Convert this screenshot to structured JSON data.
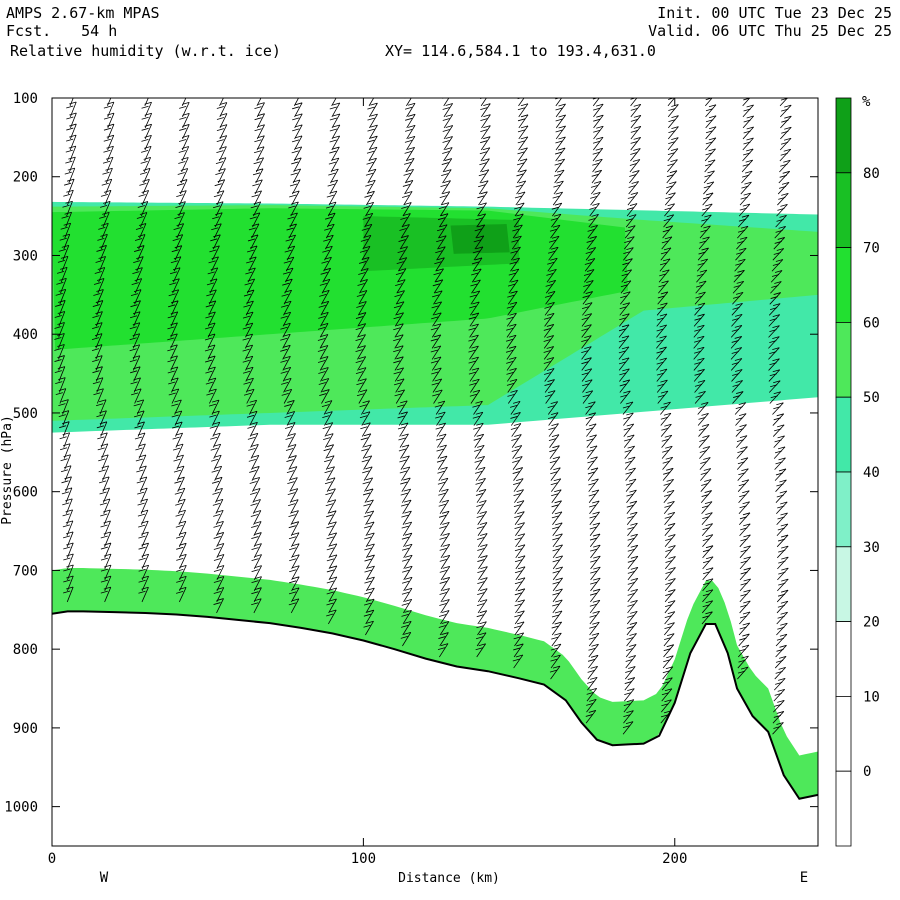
{
  "header": {
    "model": "AMPS 2.67-km MPAS",
    "fcst_label": "Fcst.",
    "fcst_value": "54 h",
    "field": "Relative humidity (w.r.t. ice)",
    "xy": "XY= 114.6,584.1 to 193.4,631.0",
    "init": "Init. 00 UTC Tue 23 Dec 25",
    "valid": "Valid. 06 UTC Thu 25 Dec 25"
  },
  "chart_data": {
    "type": "cross-section",
    "title": "Relative humidity (w.r.t. ice)",
    "xlabel": "Distance (km)",
    "ylabel": "Pressure (hPa)",
    "xlim": [
      0,
      246
    ],
    "ylim": [
      1050,
      100
    ],
    "x_ticks": [
      "0",
      "100",
      "200"
    ],
    "y_ticks": [
      "100",
      "200",
      "300",
      "400",
      "500",
      "600",
      "700",
      "800",
      "900",
      "1000"
    ],
    "end_labels": {
      "west": "W",
      "east": "E"
    },
    "colorbar": {
      "unit": "%",
      "levels": [
        20,
        30,
        40,
        50,
        60,
        70,
        80
      ],
      "labels": [
        "80",
        "70",
        "60",
        "50",
        "40",
        "30",
        "20",
        "10",
        "0"
      ],
      "colors": [
        "#ffffff",
        "#c8f7e4",
        "#7ff0c8",
        "#42e8a8",
        "#4ee85a",
        "#22e030",
        "#19c024",
        "#0fa018"
      ]
    },
    "terrain_surface_hPa": {
      "x": [
        0,
        5,
        10,
        20,
        30,
        40,
        50,
        60,
        70,
        80,
        90,
        100,
        110,
        120,
        130,
        140,
        150,
        158,
        165,
        170,
        175,
        180,
        185,
        190,
        195,
        200,
        205,
        210,
        213,
        217,
        220,
        225,
        230,
        235,
        240,
        246
      ],
      "p": [
        755,
        752,
        752,
        753,
        754,
        756,
        759,
        763,
        767,
        773,
        780,
        789,
        800,
        812,
        822,
        828,
        837,
        845,
        865,
        893,
        915,
        922,
        921,
        920,
        910,
        868,
        805,
        768,
        768,
        805,
        850,
        885,
        905,
        960,
        990,
        985
      ]
    },
    "rh_layers": [
      {
        "level": 40,
        "x": [
          0,
          70,
          140,
          246
        ],
        "top": [
          232,
          234,
          238,
          248
        ],
        "bottom": [
          525,
          515,
          515,
          480
        ]
      },
      {
        "level": 50,
        "x": [
          0,
          70,
          140,
          190,
          246
        ],
        "top": [
          238,
          236,
          240,
          255,
          270
        ],
        "bottom": [
          510,
          500,
          490,
          370,
          350
        ]
      },
      {
        "level": 60,
        "x": [
          0,
          70,
          140,
          185
        ],
        "top": [
          245,
          240,
          243,
          265
        ],
        "bottom": [
          420,
          400,
          380,
          345
        ]
      },
      {
        "level": 70,
        "x": [
          100,
          150
        ],
        "top": [
          250,
          255
        ],
        "bottom": [
          320,
          310
        ]
      },
      {
        "level": 80,
        "x": [
          128,
          147
        ],
        "top": [
          262,
          260
        ],
        "bottom": [
          298,
          296
        ]
      }
    ],
    "surface_moist_layer": {
      "level": 50,
      "depth_hPa": 55
    }
  }
}
